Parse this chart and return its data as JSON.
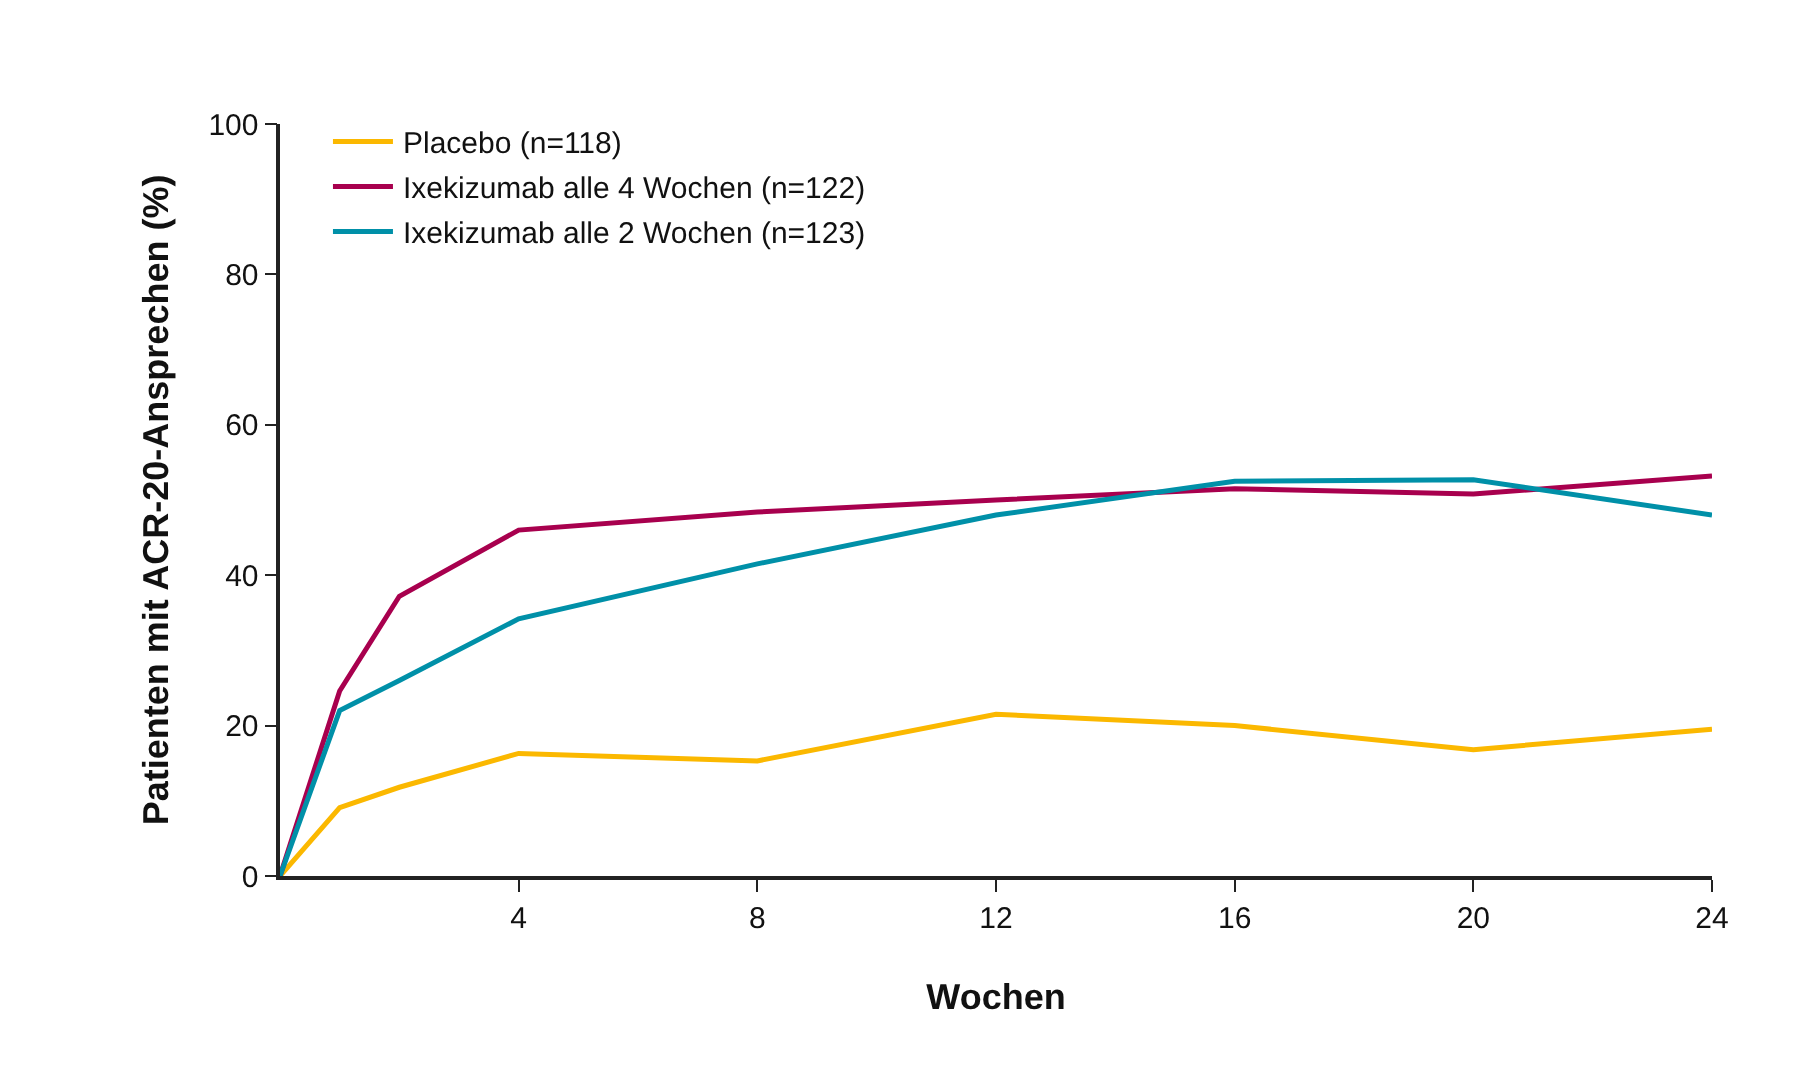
{
  "chart_data": {
    "type": "line",
    "xlabel": "Wochen",
    "ylabel": "Patienten mit ACR-20-Ansprechen (%)",
    "x": [
      0,
      1,
      2,
      4,
      8,
      12,
      16,
      20,
      24
    ],
    "series": [
      {
        "name": "Placebo (n=118)",
        "color": "#fbb800",
        "values": [
          0,
          9.1,
          11.8,
          16.3,
          15.3,
          21.5,
          20,
          16.8,
          19.5
        ]
      },
      {
        "name": "Ixekizumab alle 4 Wochen (n=122)",
        "color": "#a8004e",
        "values": [
          0,
          24.6,
          37.2,
          46,
          48.4,
          50,
          51.5,
          50.8,
          53.2
        ]
      },
      {
        "name": "Ixekizumab alle 2 Wochen (n=123)",
        "color": "#0090a8",
        "values": [
          0,
          22,
          26,
          34.2,
          41.5,
          48,
          52.5,
          52.7,
          48
        ]
      }
    ],
    "xlim": [
      0,
      24
    ],
    "xticks": [
      4,
      8,
      12,
      16,
      20,
      24
    ],
    "ylim": [
      0,
      100
    ],
    "yticks": [
      0,
      20,
      40,
      60,
      80,
      100
    ],
    "grid": false,
    "legend": "top left",
    "marker": "none",
    "line_style": "solid"
  }
}
